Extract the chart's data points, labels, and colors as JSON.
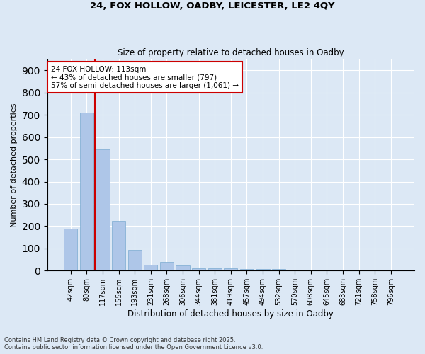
{
  "title_line1": "24, FOX HOLLOW, OADBY, LEICESTER, LE2 4QY",
  "title_line2": "Size of property relative to detached houses in Oadby",
  "xlabel": "Distribution of detached houses by size in Oadby",
  "ylabel": "Number of detached properties",
  "categories": [
    "42sqm",
    "80sqm",
    "117sqm",
    "155sqm",
    "193sqm",
    "231sqm",
    "268sqm",
    "306sqm",
    "344sqm",
    "381sqm",
    "419sqm",
    "457sqm",
    "494sqm",
    "532sqm",
    "570sqm",
    "608sqm",
    "645sqm",
    "683sqm",
    "721sqm",
    "758sqm",
    "796sqm"
  ],
  "values": [
    190,
    710,
    545,
    225,
    93,
    27,
    38,
    24,
    12,
    10,
    10,
    9,
    7,
    6,
    5,
    4,
    0,
    0,
    0,
    0,
    5
  ],
  "bar_color": "#aec6e8",
  "bar_edge_color": "#7aaad0",
  "vline_x_index": 2,
  "vline_color": "#cc0000",
  "annotation_title": "24 FOX HOLLOW: 113sqm",
  "annotation_line2": "← 43% of detached houses are smaller (797)",
  "annotation_line3": "57% of semi-detached houses are larger (1,061) →",
  "annotation_box_color": "#cc0000",
  "annotation_bg": "#ffffff",
  "ylim": [
    0,
    950
  ],
  "yticks": [
    0,
    100,
    200,
    300,
    400,
    500,
    600,
    700,
    800,
    900
  ],
  "footer_line1": "Contains HM Land Registry data © Crown copyright and database right 2025.",
  "footer_line2": "Contains public sector information licensed under the Open Government Licence v3.0.",
  "bg_color": "#dce8f5",
  "grid_color": "#ffffff"
}
